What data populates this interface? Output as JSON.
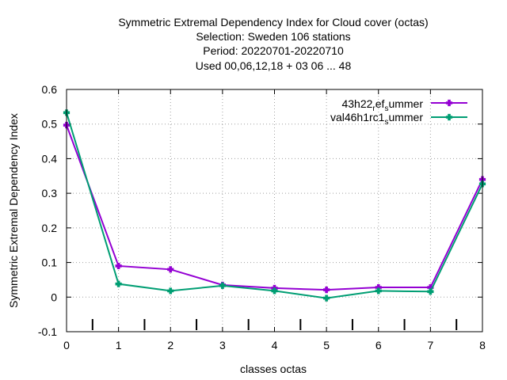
{
  "chart_data": {
    "type": "line",
    "title_lines": [
      "Symmetric Extremal Dependency Index  for Cloud cover (octas)",
      "Selection: Sweden    106 stations",
      "Period: 20220701-20220710",
      "Used  00,06,12,18  + 03 06 ... 48"
    ],
    "xlabel": "classes octas",
    "ylabel": "Symmetric Extremal Dependency Index",
    "xlim": [
      0,
      8
    ],
    "ylim": [
      -0.1,
      0.6
    ],
    "xticks": [
      "0",
      "1",
      "2",
      "3",
      "4",
      "5",
      "6",
      "7",
      "8"
    ],
    "yticks": [
      "-0.1",
      "0",
      "0.1",
      "0.2",
      "0.3",
      "0.4",
      "0.5",
      "0.6"
    ],
    "grid": true,
    "legend_position": "top-right",
    "class_boundary_marks": [
      0.5,
      1.5,
      2.5,
      3.5,
      4.5,
      5.5,
      6.5,
      7.5
    ],
    "series": [
      {
        "legend_main": "43h22",
        "legend_sub1": "r",
        "legend_mid": "ef",
        "legend_sub2": "s",
        "legend_end": "ummer",
        "color": "#9400d3",
        "x": [
          0,
          1,
          2,
          3,
          4,
          5,
          6,
          7,
          8
        ],
        "values": [
          0.497,
          0.09,
          0.08,
          0.035,
          0.026,
          0.021,
          0.028,
          0.028,
          0.34
        ]
      },
      {
        "legend_main": "val46h1rc1",
        "legend_sub1": "",
        "legend_mid": "",
        "legend_sub2": "s",
        "legend_end": "ummer",
        "color": "#009e73",
        "x": [
          0,
          1,
          2,
          3,
          4,
          5,
          6,
          7,
          8
        ],
        "values": [
          0.533,
          0.038,
          0.018,
          0.033,
          0.018,
          -0.003,
          0.018,
          0.016,
          0.327
        ]
      }
    ]
  }
}
